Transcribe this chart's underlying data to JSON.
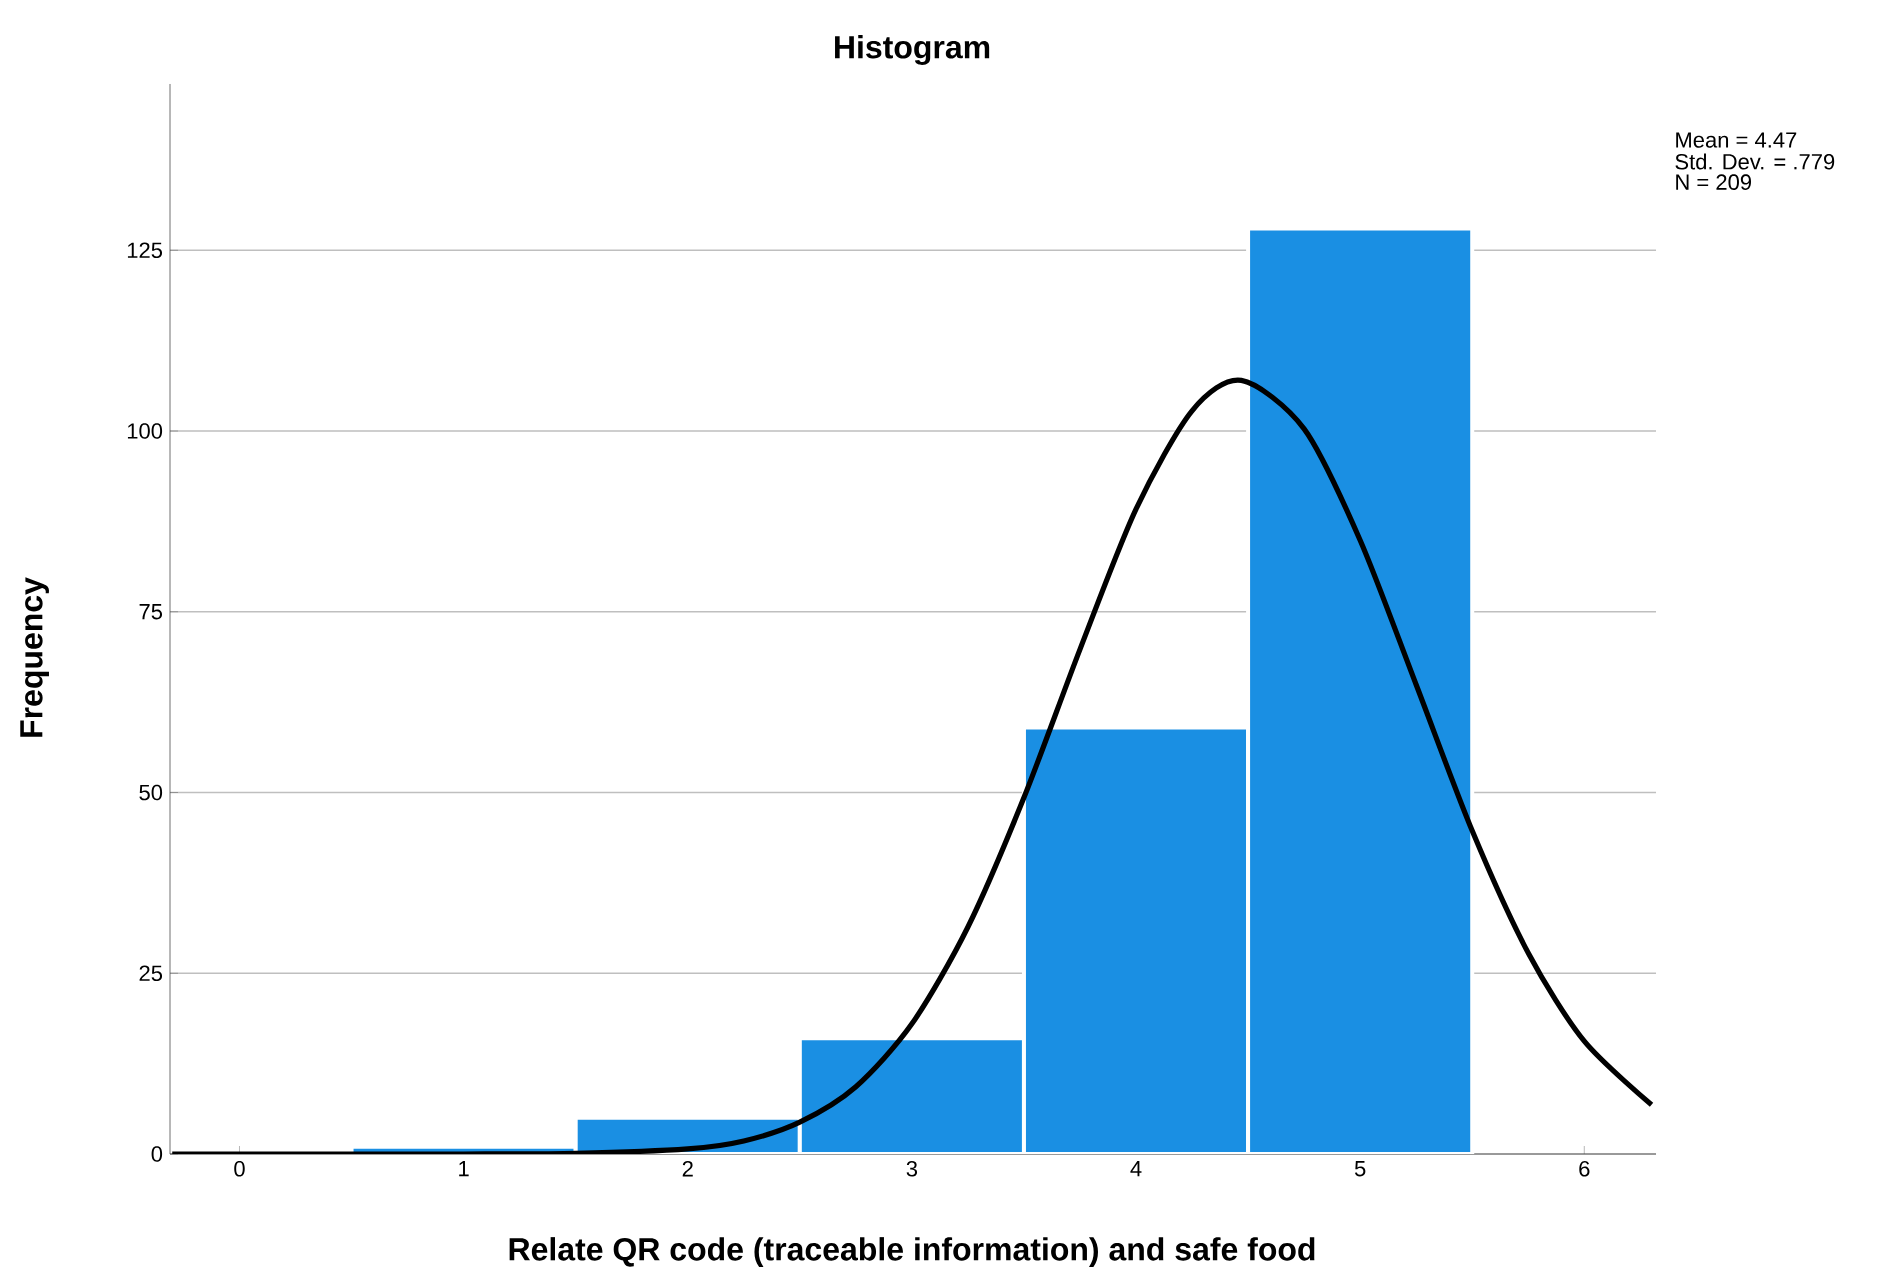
{
  "chart_data": {
    "type": "histogram",
    "title": "Histogram",
    "xlabel": "Relate QR code (traceable information) and safe food",
    "ylabel": "Frequency",
    "annotations": [
      "Mean = 4.47",
      "Std. Dev. = .779",
      "N = 209"
    ],
    "series": [
      {
        "bins": [
          0.5,
          1.5,
          2.5,
          3.5,
          4.5,
          5.5
        ],
        "values": [
          1,
          5,
          16,
          59,
          128
        ],
        "color": "#1a8fe3"
      },
      {
        "type": "line",
        "color": "#000000",
        "x": [
          -0.3,
          0,
          0.5,
          1,
          1.5,
          2,
          2.25,
          2.5,
          2.75,
          3,
          3.25,
          3.5,
          3.75,
          4,
          4.25,
          4.47,
          4.75,
          5,
          5.25,
          5.5,
          5.75,
          6,
          6.3
        ],
        "values": [
          0,
          0,
          0,
          0,
          0.1,
          0.7,
          1.8,
          4.4,
          9.3,
          18,
          31.4,
          49.3,
          69.8,
          89.2,
          102.8,
          107,
          100.3,
          84.9,
          64.9,
          44.7,
          27.8,
          15.6,
          6.8
        ]
      }
    ],
    "xlim": [
      -0.31,
      6.32
    ],
    "ylim": [
      0,
      148
    ],
    "xticks": [
      0,
      1,
      2,
      3,
      4,
      5,
      6
    ],
    "yticks": [
      0,
      25,
      50,
      75,
      100,
      125
    ],
    "grid": "y"
  }
}
